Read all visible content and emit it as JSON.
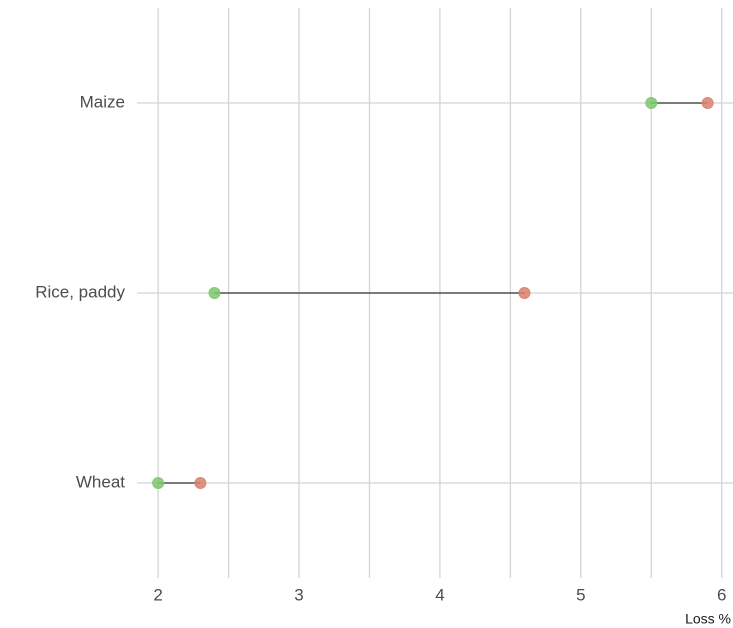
{
  "chart_data": {
    "type": "dumbbell",
    "categories": [
      "Maize",
      "Rice, paddy",
      "Wheat"
    ],
    "series": [
      {
        "color": "#7cc86a",
        "values": [
          5.5,
          2.4,
          2.0
        ]
      },
      {
        "color": "#d9806c",
        "values": [
          5.9,
          4.6,
          2.3
        ]
      }
    ],
    "xlabel": "Loss %",
    "xlim": [
      1.85,
      6.08
    ],
    "xticks": [
      2,
      3,
      4,
      5,
      6
    ],
    "xminorticks": [
      2.5,
      3.5,
      4.5,
      5.5
    ],
    "grid": true,
    "connector_color": "#333333"
  }
}
